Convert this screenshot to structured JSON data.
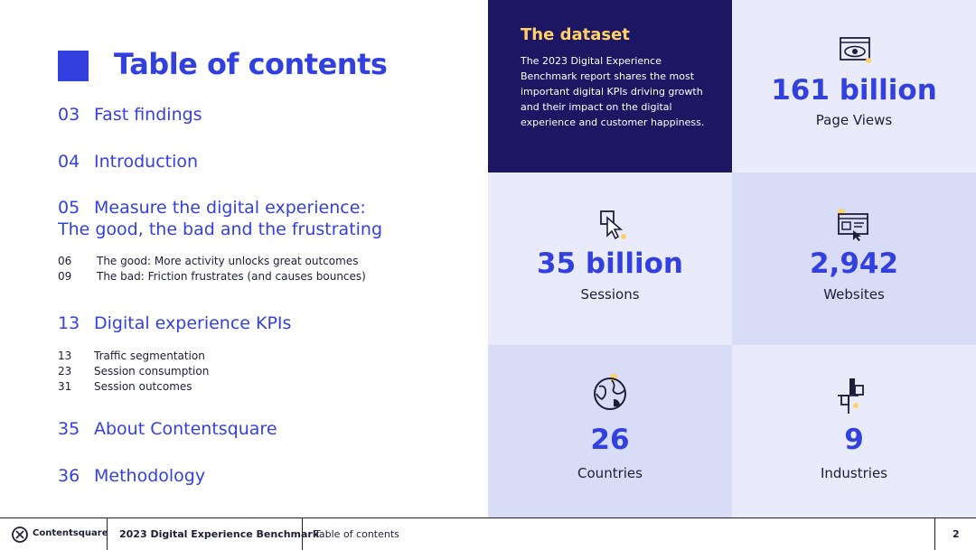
{
  "toc": {
    "title": "Table of contents",
    "main": [
      {
        "num": "03",
        "label": "Fast findings"
      },
      {
        "num": "04",
        "label": "Introduction"
      },
      {
        "num": "05",
        "label": "Measure the digital experience:",
        "label2": "The good, the bad and the frustrating"
      },
      {
        "num": "13",
        "label": "Digital experience KPIs"
      },
      {
        "num": "35",
        "label": "About Contentsquare"
      },
      {
        "num": "36",
        "label": "Methodology"
      }
    ],
    "sub05": [
      {
        "num": "06",
        "label": "The good: More activity unlocks great outcomes"
      },
      {
        "num": "09",
        "label": "The bad: Friction frustrates (and causes bounces)"
      }
    ],
    "sub13": [
      {
        "num": "13",
        "label": "Traffic segmentation"
      },
      {
        "num": "23",
        "label": "Session consumption"
      },
      {
        "num": "31",
        "label": "Session outcomes"
      }
    ]
  },
  "dataset": {
    "title": "The dataset",
    "text": "The 2023 Digital Experience Benchmark report shares the most important digital KPIs driving growth and their impact on the digital experience and customer happiness."
  },
  "stats": [
    {
      "value": "161 billion",
      "label": "Page Views",
      "icon": "eye-icon"
    },
    {
      "value": "35 billion",
      "label": "Sessions",
      "icon": "cursor-click-icon"
    },
    {
      "value": "2,942",
      "label": "Websites",
      "icon": "website-icon"
    },
    {
      "value": "26",
      "label": "Countries",
      "icon": "globe-icon"
    },
    {
      "value": "9",
      "label": "Industries",
      "icon": "industry-icon"
    }
  ],
  "footer": {
    "brand": "Contentsquare",
    "report": "2023 Digital Experience Benchmark",
    "section": "Table of contents",
    "page": "2"
  },
  "colors": {
    "accent": "#3340e0",
    "dark": "#1d1763",
    "light": "#e9ebfb",
    "mid": "#d8dcf7",
    "yellow": "#ffd166"
  }
}
